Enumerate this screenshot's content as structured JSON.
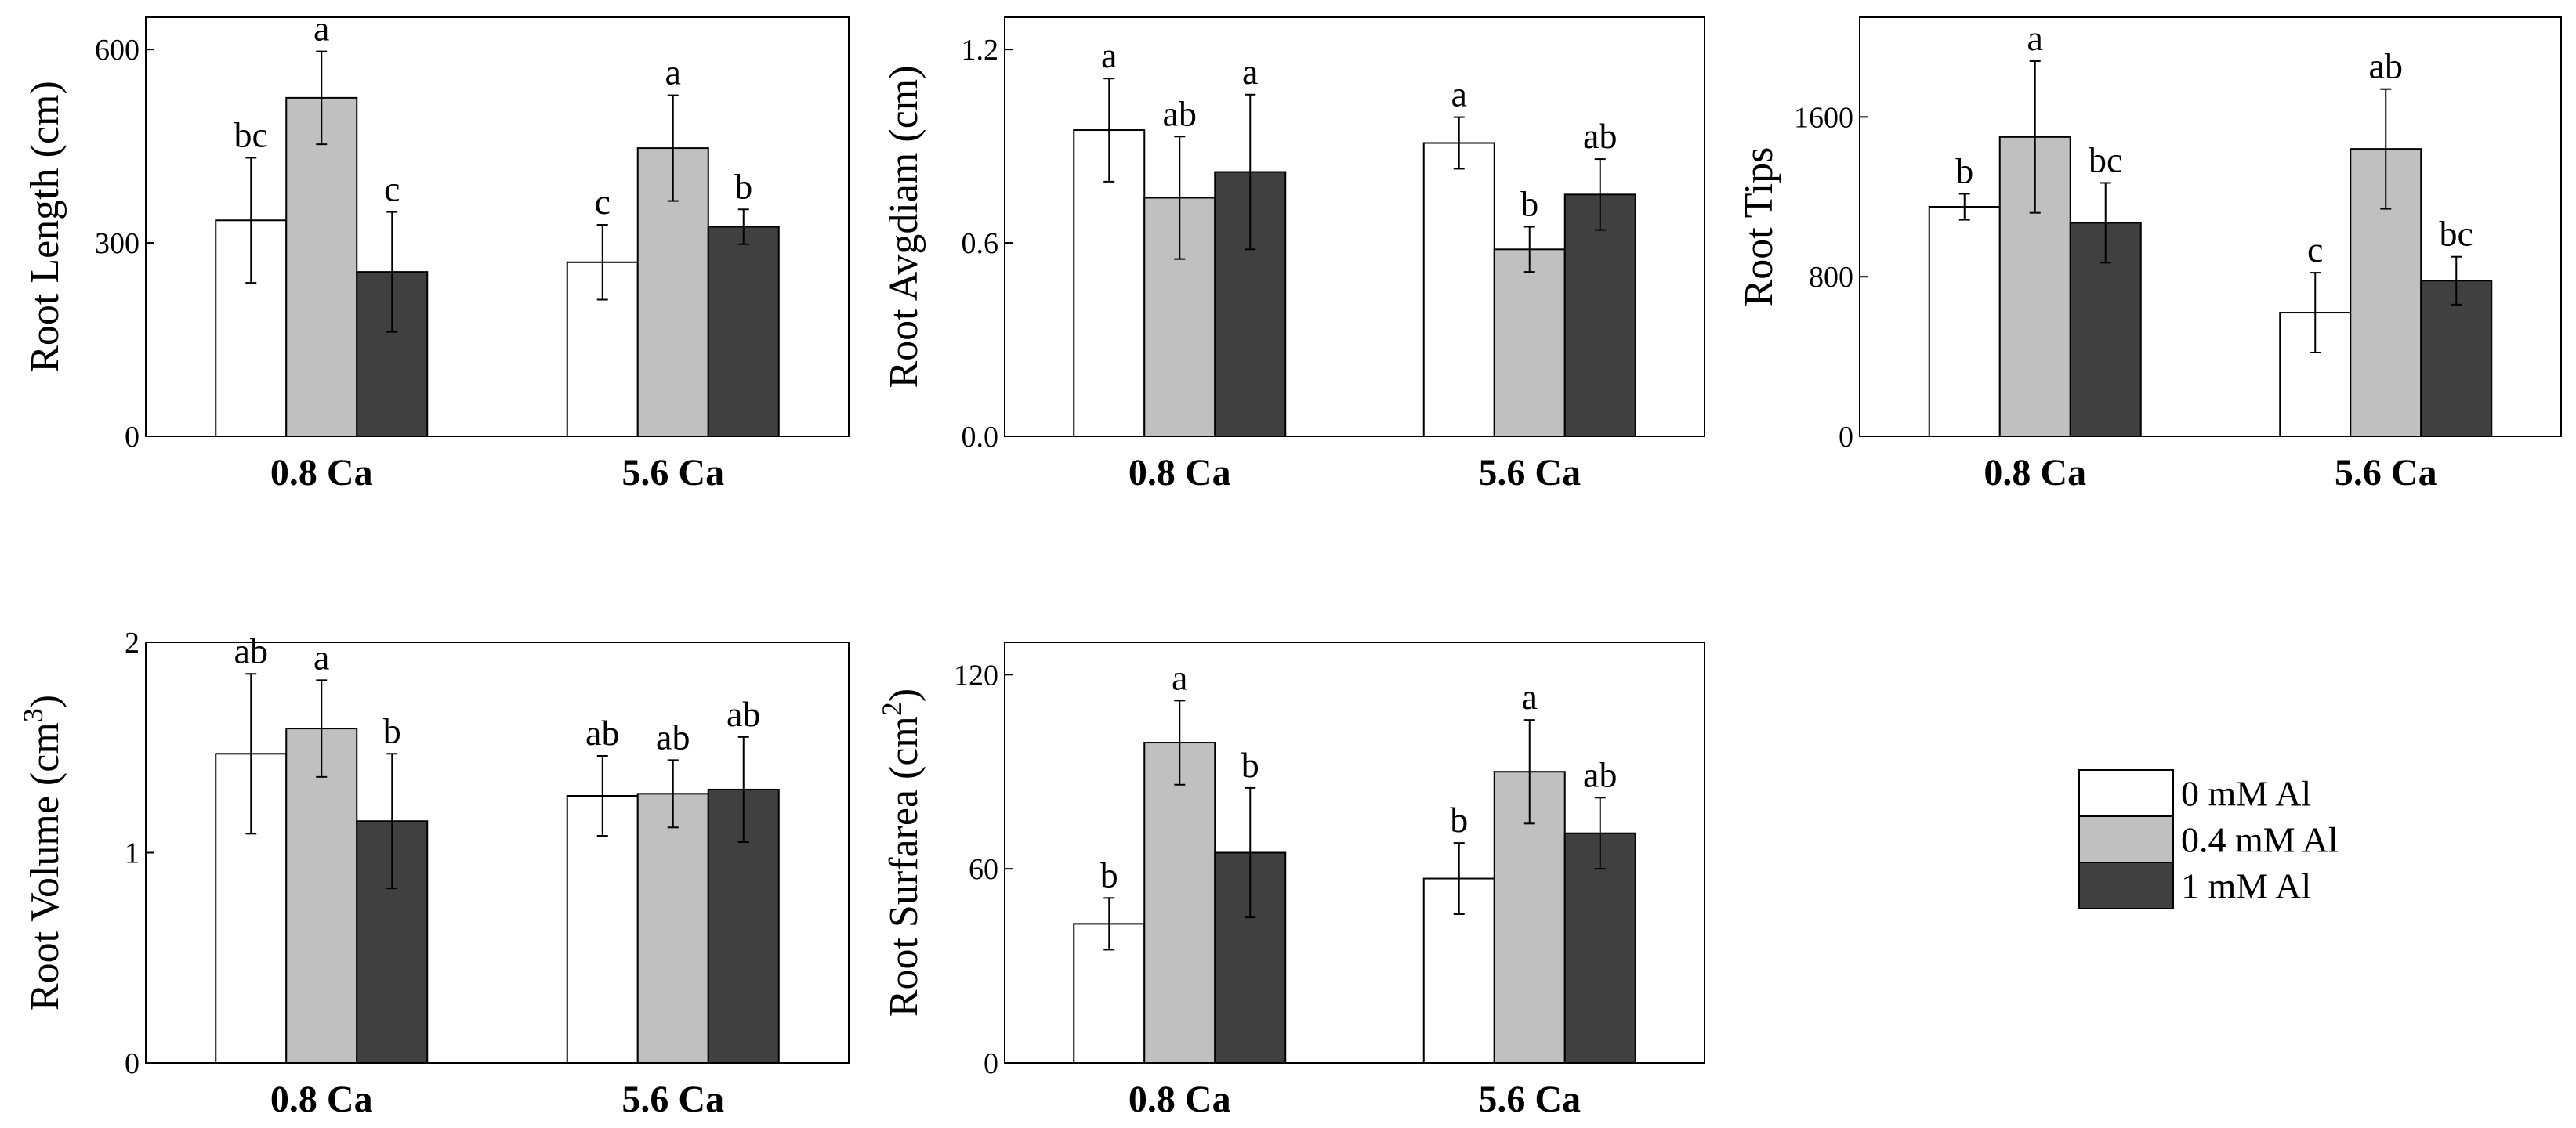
{
  "chart_data": [
    {
      "type": "bar",
      "ylabel": "Root Length (cm)",
      "categories": [
        "0.8 Ca",
        "5.6 Ca"
      ],
      "ylim": [
        0,
        650
      ],
      "yticks": [
        0,
        300,
        600
      ],
      "series": [
        {
          "name": "0 mM Al",
          "values": [
            335,
            270
          ],
          "errors": [
            97,
            58
          ],
          "sig": [
            "bc",
            "c"
          ]
        },
        {
          "name": "0.4 mM Al",
          "values": [
            525,
            447
          ],
          "errors": [
            72,
            82
          ],
          "sig": [
            "a",
            "a"
          ]
        },
        {
          "name": "1 mM Al",
          "values": [
            255,
            325
          ],
          "errors": [
            93,
            27
          ],
          "sig": [
            "c",
            "b"
          ]
        }
      ]
    },
    {
      "type": "bar",
      "ylabel": "Root Avgdiam (cm)",
      "categories": [
        "0.8 Ca",
        "5.6 Ca"
      ],
      "ylim": [
        0,
        1.3
      ],
      "yticks": [
        "0.0",
        "0.6",
        "1.2"
      ],
      "series": [
        {
          "name": "0 mM Al",
          "values": [
            0.95,
            0.91
          ],
          "errors": [
            0.16,
            0.08
          ],
          "sig": [
            "a",
            "a"
          ]
        },
        {
          "name": "0.4 mM Al",
          "values": [
            0.74,
            0.58
          ],
          "errors": [
            0.19,
            0.07
          ],
          "sig": [
            "ab",
            "b"
          ]
        },
        {
          "name": "1 mM Al",
          "values": [
            0.82,
            0.75
          ],
          "errors": [
            0.24,
            0.11
          ],
          "sig": [
            "a",
            "ab"
          ]
        }
      ]
    },
    {
      "type": "bar",
      "ylabel": "Root Tips",
      "categories": [
        "0.8 Ca",
        "5.6 Ca"
      ],
      "ylim": [
        0,
        2100
      ],
      "yticks": [
        0,
        800,
        1600
      ],
      "series": [
        {
          "name": "0 mM Al",
          "values": [
            1150,
            620
          ],
          "errors": [
            65,
            200
          ],
          "sig": [
            "b",
            "c"
          ]
        },
        {
          "name": "0.4 mM Al",
          "values": [
            1500,
            1440
          ],
          "errors": [
            380,
            300
          ],
          "sig": [
            "a",
            "ab"
          ]
        },
        {
          "name": "1 mM Al",
          "values": [
            1070,
            780
          ],
          "errors": [
            200,
            120
          ],
          "sig": [
            "bc",
            "bc"
          ]
        }
      ]
    },
    {
      "type": "bar",
      "ylabel_parts": [
        "Root Volume (cm",
        "3",
        ")"
      ],
      "categories": [
        "0.8 Ca",
        "5.6 Ca"
      ],
      "ylim": [
        0,
        2
      ],
      "yticks": [
        0,
        1,
        2
      ],
      "series": [
        {
          "name": "0 mM Al",
          "values": [
            1.47,
            1.27
          ],
          "errors": [
            0.38,
            0.19
          ],
          "sig": [
            "ab",
            "ab"
          ]
        },
        {
          "name": "0.4 mM Al",
          "values": [
            1.59,
            1.28
          ],
          "errors": [
            0.23,
            0.16
          ],
          "sig": [
            "a",
            "ab"
          ]
        },
        {
          "name": "1 mM Al",
          "values": [
            1.15,
            1.3
          ],
          "errors": [
            0.32,
            0.25
          ],
          "sig": [
            "b",
            "ab"
          ]
        }
      ]
    },
    {
      "type": "bar",
      "ylabel_parts": [
        "Root Surfarea (cm",
        "2",
        ")"
      ],
      "categories": [
        "0.8 Ca",
        "5.6 Ca"
      ],
      "ylim": [
        0,
        130
      ],
      "yticks": [
        0,
        60,
        120
      ],
      "series": [
        {
          "name": "0 mM Al",
          "values": [
            43,
            57
          ],
          "errors": [
            8,
            11
          ],
          "sig": [
            "b",
            "b"
          ]
        },
        {
          "name": "0.4 mM Al",
          "values": [
            99,
            90
          ],
          "errors": [
            13,
            16
          ],
          "sig": [
            "a",
            "a"
          ]
        },
        {
          "name": "1 mM Al",
          "values": [
            65,
            71
          ],
          "errors": [
            20,
            11
          ],
          "sig": [
            "b",
            "ab"
          ]
        }
      ]
    }
  ],
  "legend": [
    {
      "label": "0  mM Al",
      "color": "#ffffff"
    },
    {
      "label": "0.4 mM Al",
      "color": "#c0c0c0"
    },
    {
      "label": "1  mM Al",
      "color": "#404040"
    }
  ],
  "colors": [
    "#ffffff",
    "#c0c0c0",
    "#404040"
  ]
}
